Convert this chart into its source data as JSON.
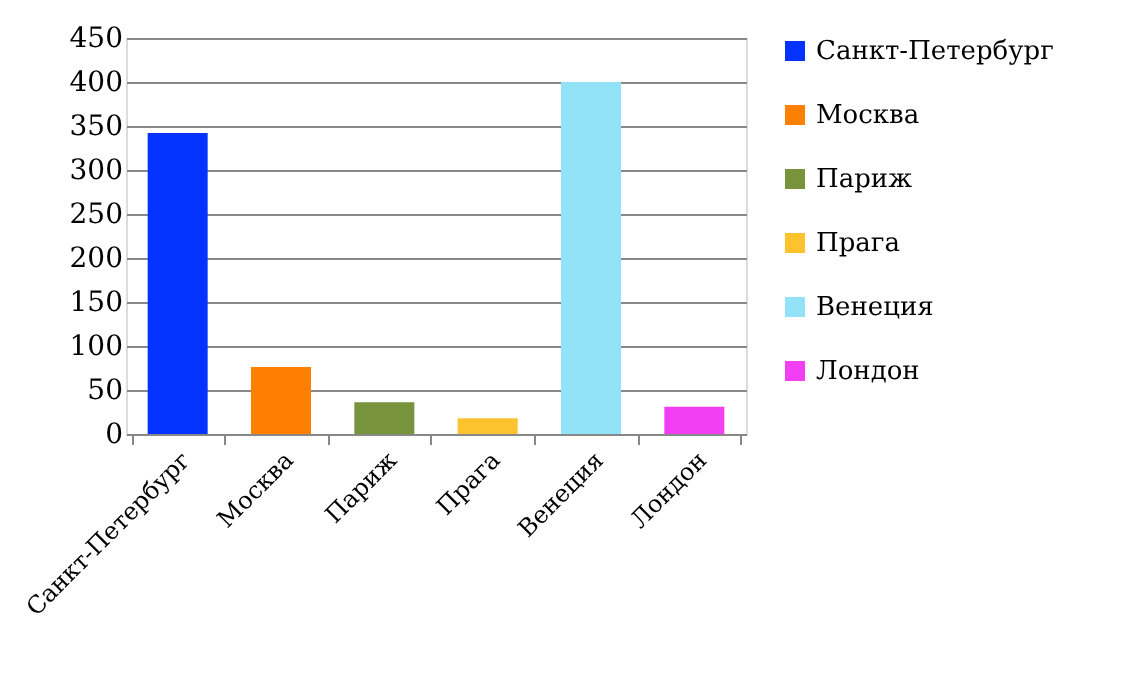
{
  "chart_data": {
    "type": "bar",
    "categories": [
      "Санкт-Петербург",
      "Москва",
      "Париж",
      "Прага",
      "Венеция",
      "Лондон"
    ],
    "series": [
      {
        "name": "Санкт-Петербург",
        "color": "#0433ff",
        "values": [
          342,
          null,
          null,
          null,
          null,
          null
        ]
      },
      {
        "name": "Москва",
        "color": "#ff7f00",
        "values": [
          null,
          76,
          null,
          null,
          null,
          null
        ]
      },
      {
        "name": "Париж",
        "color": "#77933c",
        "values": [
          null,
          null,
          36,
          null,
          null,
          null
        ]
      },
      {
        "name": "Прага",
        "color": "#fcc32e",
        "values": [
          null,
          null,
          null,
          18,
          null,
          null
        ]
      },
      {
        "name": "Венеция",
        "color": "#93e3f8",
        "values": [
          null,
          null,
          null,
          null,
          400,
          null
        ]
      },
      {
        "name": "Лондон",
        "color": "#f33ff3",
        "values": [
          null,
          null,
          null,
          null,
          null,
          31
        ]
      }
    ],
    "ylim": [
      0,
      450
    ],
    "yticks": [
      0,
      50,
      100,
      150,
      200,
      250,
      300,
      350,
      400,
      450
    ],
    "grid": "y",
    "legend": "right"
  }
}
